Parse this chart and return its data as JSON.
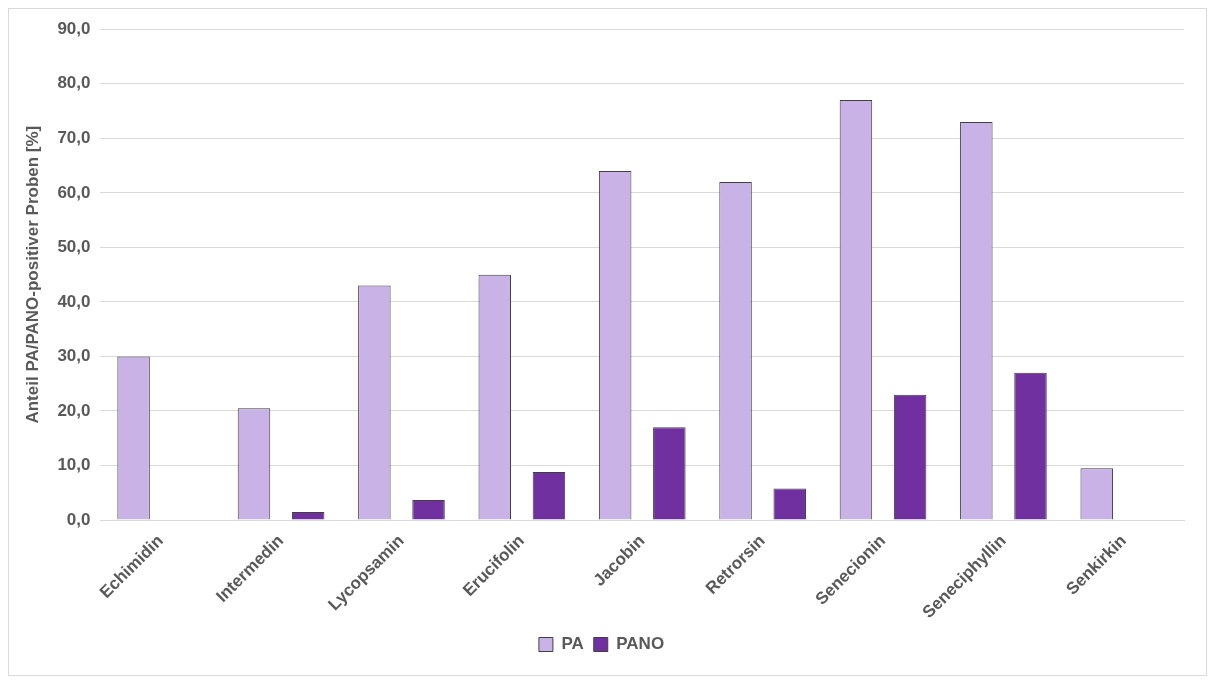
{
  "chart_data": {
    "type": "bar",
    "ylabel": "Anteil PA/PANO-positiver Proben [%]",
    "categories": [
      "Echimidin",
      "Intermedin",
      "Lycopsamin",
      "Erucifolin",
      "Jacobin",
      "Retrorsin",
      "Senecionin",
      "Seneciphyllin",
      "Senkirkin"
    ],
    "series": [
      {
        "name": "PA",
        "color": "#c9b3e6",
        "values": [
          30,
          20.5,
          43,
          45,
          64,
          62,
          77,
          73,
          9.5
        ]
      },
      {
        "name": "PANO",
        "color": "#7030a0",
        "values": [
          0,
          1.5,
          3.7,
          8.8,
          17,
          5.8,
          23,
          27,
          0
        ]
      }
    ],
    "ylim": [
      0,
      90
    ],
    "yticks": [
      {
        "value": 0,
        "label": "0,0"
      },
      {
        "value": 10,
        "label": "10,0"
      },
      {
        "value": 20,
        "label": "20,0"
      },
      {
        "value": 30,
        "label": "30,0"
      },
      {
        "value": 40,
        "label": "40,0"
      },
      {
        "value": 50,
        "label": "50,0"
      },
      {
        "value": 60,
        "label": "60,0"
      },
      {
        "value": 70,
        "label": "70,0"
      },
      {
        "value": 80,
        "label": "80,0"
      },
      {
        "value": 90,
        "label": "90,0"
      }
    ],
    "grid": "y",
    "legend": "bottom"
  }
}
